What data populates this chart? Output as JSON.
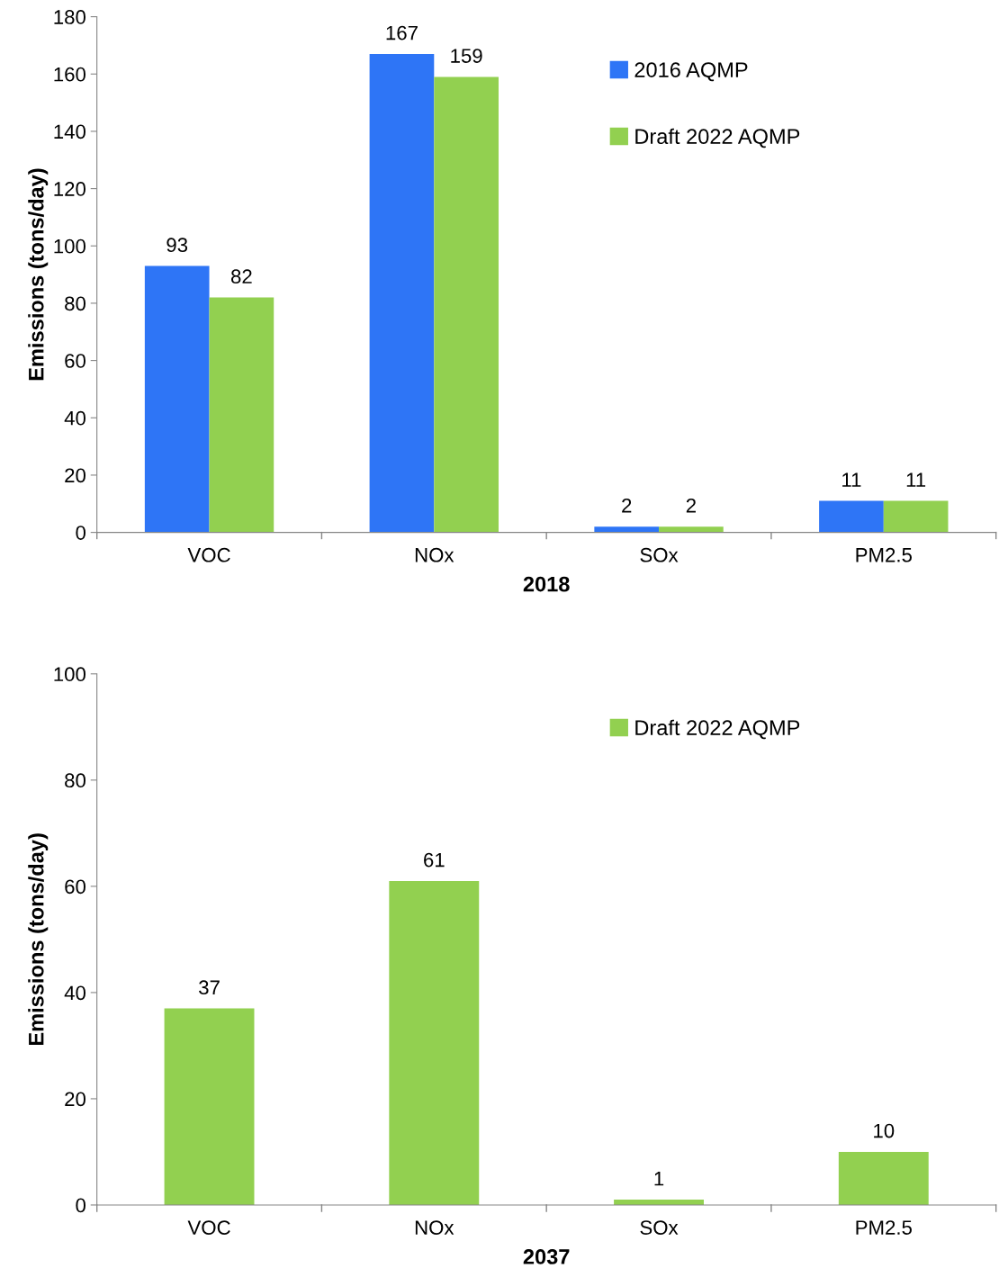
{
  "chart_data": [
    {
      "type": "bar",
      "xlabel": "2018",
      "ylabel": "Emissions (tons/day)",
      "categories": [
        "VOC",
        "NOx",
        "SOx",
        "PM2.5"
      ],
      "series": [
        {
          "name": "2016 AQMP",
          "color": "#2e75f6",
          "values": [
            93,
            167,
            2,
            11
          ]
        },
        {
          "name": "Draft 2022 AQMP",
          "color": "#92d050",
          "values": [
            82,
            159,
            2,
            11
          ]
        }
      ],
      "ylim": [
        0,
        180
      ],
      "yticks": [
        0,
        20,
        40,
        60,
        80,
        100,
        120,
        140,
        160,
        180
      ],
      "grid": false,
      "legend": "top right",
      "data_labels": true
    },
    {
      "type": "bar",
      "xlabel": "2037",
      "ylabel": "Emissions (tons/day)",
      "categories": [
        "VOC",
        "NOx",
        "SOx",
        "PM2.5"
      ],
      "series": [
        {
          "name": "Draft 2022 AQMP",
          "color": "#92d050",
          "values": [
            37,
            61,
            1,
            10
          ]
        }
      ],
      "ylim": [
        0,
        100
      ],
      "yticks": [
        0,
        20,
        40,
        60,
        80,
        100
      ],
      "grid": false,
      "legend": "top right",
      "data_labels": true
    }
  ]
}
